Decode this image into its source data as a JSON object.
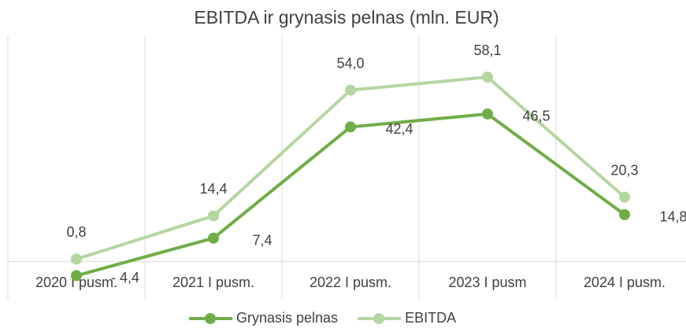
{
  "chart_data": {
    "type": "line",
    "title": "EBITDA ir grynasis pelnas (mln. EUR)",
    "categories": [
      "2020 I pusm.",
      "2021 I pusm.",
      "2022 I pusm.",
      "2023 I pusm",
      "2024 I pusm."
    ],
    "series": [
      {
        "name": "Grynasis pelnas",
        "color": "#70ad47",
        "values": [
          -4.4,
          7.4,
          42.4,
          46.5,
          14.8
        ],
        "value_labels": [
          "- 4,4",
          "7,4",
          "42,4",
          "46,5",
          "14,8"
        ]
      },
      {
        "name": "EBITDA",
        "color": "#b5d6a0",
        "values": [
          0.8,
          14.4,
          54.0,
          58.1,
          20.3
        ],
        "value_labels": [
          "0,8",
          "14,4",
          "54,0",
          "58,1",
          "20,3"
        ]
      }
    ],
    "ylim": [
      -10,
      70
    ],
    "legend": "bottom"
  }
}
